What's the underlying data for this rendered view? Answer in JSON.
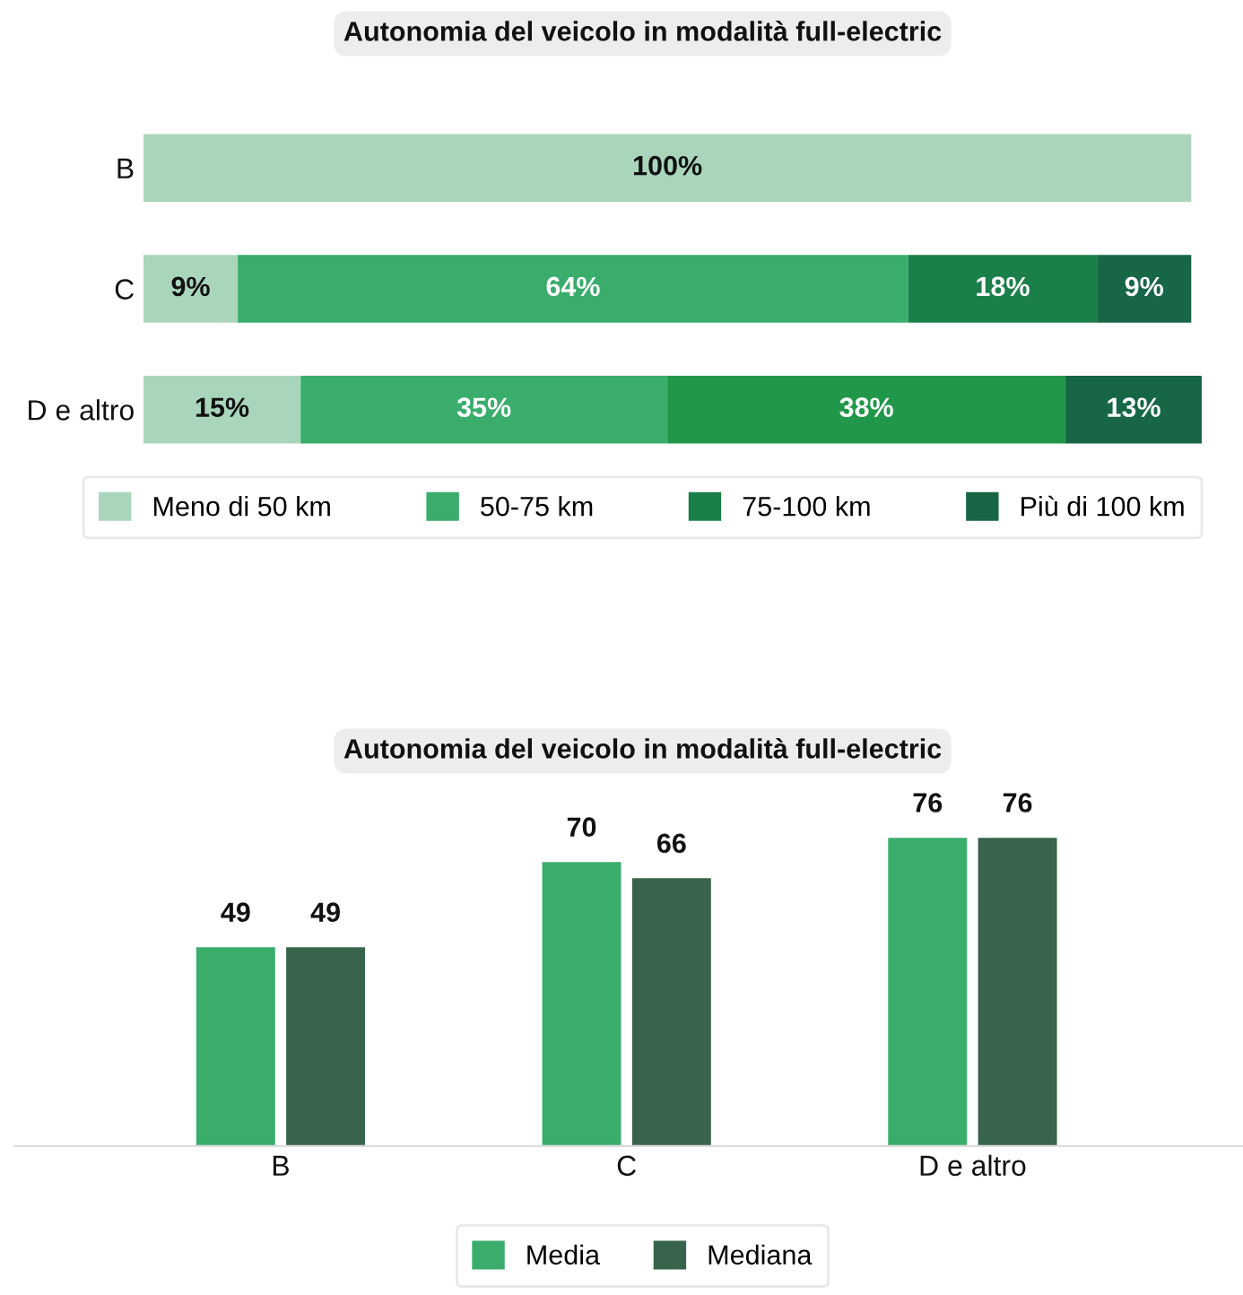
{
  "chart_data": [
    {
      "type": "bar",
      "orientation": "horizontal",
      "stacked": true,
      "title": "Autonomia del veicolo in modalità full-electric",
      "categories": [
        "B",
        "C",
        "D e altro"
      ],
      "tick_labels": "y",
      "legend": "bottom",
      "series": [
        {
          "name": "Meno di 50 km",
          "color": "#a9d6bb",
          "values": [
            100,
            9,
            15
          ],
          "value_labels": [
            "100%",
            "9%",
            "15%"
          ]
        },
        {
          "name": "50-75 km",
          "color": "#3aad6c",
          "values": [
            null,
            64,
            35
          ],
          "value_labels": [
            null,
            "64%",
            "35%"
          ]
        },
        {
          "name": "75-100 km",
          "color": "#1b7f49",
          "colors": [
            "#1b7f49",
            "#1b7f49",
            "#21974a"
          ],
          "values": [
            null,
            18,
            38
          ],
          "value_labels": [
            null,
            "18%",
            "38%"
          ]
        },
        {
          "name": "Più di 100 km",
          "color": "#176645",
          "values": [
            null,
            9,
            13
          ],
          "value_labels": [
            null,
            "9%",
            "13%"
          ]
        }
      ]
    },
    {
      "type": "bar",
      "title": "Autonomia del veicolo in modalità full-electric",
      "categories": [
        "B",
        "C",
        "D e altro"
      ],
      "data_labels": true,
      "tick_labels": "x",
      "legend": "bottom",
      "series": [
        {
          "name": "Media",
          "color": "#3aad6c",
          "values": [
            49,
            70,
            76
          ]
        },
        {
          "name": "Mediana",
          "color": "#37644a",
          "values": [
            49,
            66,
            76
          ]
        }
      ]
    }
  ]
}
